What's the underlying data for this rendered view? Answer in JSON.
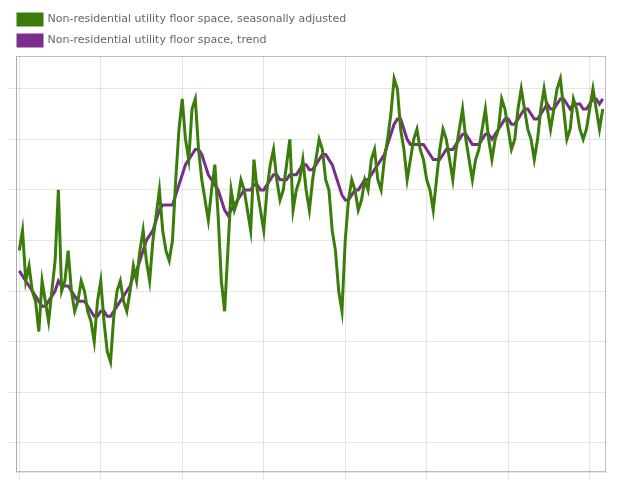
{
  "chart_data": {
    "type": "line",
    "x": [
      0,
      1,
      2,
      3,
      4,
      5,
      6,
      7,
      8,
      9,
      10,
      11,
      12,
      13,
      14,
      15,
      16,
      17,
      18,
      19,
      20,
      21,
      22,
      23,
      24,
      25,
      26,
      27,
      28,
      29,
      30,
      31,
      32,
      33,
      34,
      35,
      36,
      37,
      38,
      39,
      40,
      41,
      42,
      43,
      44,
      45,
      46,
      47,
      48,
      49,
      50,
      51,
      52,
      53,
      54,
      55,
      56,
      57,
      58,
      59,
      60,
      61,
      62,
      63,
      64,
      65,
      66,
      67,
      68,
      69,
      70,
      71,
      72,
      73,
      74,
      75,
      76,
      77,
      78,
      79,
      80,
      81,
      82,
      83,
      84,
      85,
      86,
      87,
      88,
      89,
      90,
      91,
      92,
      93,
      94,
      95,
      96,
      97,
      98,
      99,
      100,
      101,
      102,
      103,
      104,
      105,
      106,
      107,
      108,
      109,
      110,
      111,
      112,
      113,
      114,
      115,
      116,
      117,
      118,
      119,
      120,
      121,
      122,
      123,
      124,
      125,
      126,
      127,
      128,
      129,
      130,
      131,
      132,
      133,
      134,
      135,
      136,
      137,
      138,
      139,
      140,
      141,
      142,
      143,
      144,
      145,
      146,
      147,
      148,
      149,
      150,
      151,
      152,
      153,
      154,
      155,
      156,
      157,
      158,
      159,
      160,
      161,
      162,
      163,
      164,
      165,
      166,
      167,
      168,
      169,
      170,
      171,
      172,
      173,
      174,
      175,
      176,
      177,
      178,
      179
    ],
    "series": [
      {
        "name": "Non-residential utility floor space, seasonally adjusted",
        "color": "#3a7d0a",
        "values": [
          58,
          62,
          52,
          55,
          50,
          48,
          42,
          52,
          48,
          44,
          50,
          56,
          70,
          50,
          52,
          58,
          50,
          46,
          48,
          52,
          50,
          46,
          44,
          40,
          48,
          52,
          44,
          38,
          36,
          45,
          50,
          52,
          48,
          46,
          50,
          55,
          52,
          58,
          62,
          56,
          52,
          60,
          65,
          70,
          62,
          58,
          56,
          60,
          72,
          82,
          88,
          80,
          76,
          86,
          88,
          78,
          72,
          68,
          64,
          70,
          75,
          65,
          52,
          46,
          58,
          70,
          66,
          68,
          72,
          70,
          66,
          62,
          76,
          70,
          66,
          62,
          70,
          75,
          78,
          72,
          68,
          70,
          75,
          80,
          66,
          70,
          72,
          76,
          70,
          66,
          72,
          76,
          80,
          78,
          72,
          70,
          62,
          58,
          50,
          46,
          60,
          68,
          72,
          70,
          66,
          68,
          72,
          70,
          76,
          78,
          72,
          70,
          76,
          80,
          85,
          92,
          90,
          82,
          78,
          72,
          76,
          80,
          82,
          78,
          76,
          72,
          70,
          66,
          72,
          78,
          82,
          80,
          76,
          72,
          78,
          82,
          86,
          80,
          76,
          72,
          76,
          78,
          82,
          86,
          80,
          76,
          80,
          82,
          88,
          86,
          82,
          78,
          80,
          86,
          90,
          86,
          82,
          80,
          76,
          80,
          86,
          90,
          86,
          82,
          86,
          90,
          92,
          86,
          80,
          82,
          88,
          86,
          82,
          80,
          82,
          86,
          90,
          86,
          82,
          86
        ]
      },
      {
        "name": "Non-residential utility floor space, trend",
        "color": "#7b2d8b",
        "values": [
          54,
          53,
          52,
          51,
          50,
          49,
          48,
          47,
          47,
          48,
          49,
          50,
          52,
          51,
          51,
          51,
          50,
          49,
          48,
          48,
          48,
          47,
          46,
          45,
          45,
          46,
          46,
          45,
          45,
          46,
          47,
          48,
          49,
          50,
          51,
          53,
          54,
          56,
          58,
          60,
          61,
          62,
          64,
          66,
          67,
          67,
          67,
          67,
          69,
          71,
          73,
          75,
          76,
          77,
          78,
          78,
          77,
          75,
          73,
          72,
          71,
          70,
          68,
          66,
          65,
          66,
          67,
          68,
          69,
          70,
          70,
          70,
          71,
          71,
          70,
          70,
          71,
          72,
          73,
          73,
          72,
          72,
          72,
          73,
          73,
          73,
          74,
          75,
          75,
          74,
          74,
          75,
          76,
          77,
          77,
          76,
          75,
          73,
          71,
          69,
          68,
          68,
          69,
          70,
          70,
          71,
          72,
          72,
          73,
          74,
          75,
          76,
          77,
          79,
          81,
          83,
          84,
          84,
          82,
          80,
          79,
          79,
          79,
          79,
          79,
          78,
          77,
          76,
          76,
          76,
          77,
          78,
          78,
          78,
          79,
          80,
          81,
          81,
          80,
          79,
          79,
          79,
          80,
          81,
          81,
          80,
          81,
          82,
          83,
          84,
          84,
          83,
          83,
          84,
          85,
          86,
          86,
          85,
          84,
          84,
          85,
          86,
          87,
          86,
          86,
          87,
          88,
          88,
          87,
          86,
          87,
          87,
          87,
          86,
          86,
          87,
          88,
          88,
          87,
          88
        ]
      }
    ],
    "xlim": [
      -1,
      180
    ],
    "xticks": [
      0,
      25,
      50,
      75,
      100,
      125,
      150,
      175
    ],
    "ylim": [
      14.222222222222221,
      96.48
    ],
    "yticks": [
      20,
      30,
      40,
      50,
      60,
      70,
      80,
      90
    ],
    "grid": true,
    "legend": "upper left",
    "tick_labels": false
  }
}
